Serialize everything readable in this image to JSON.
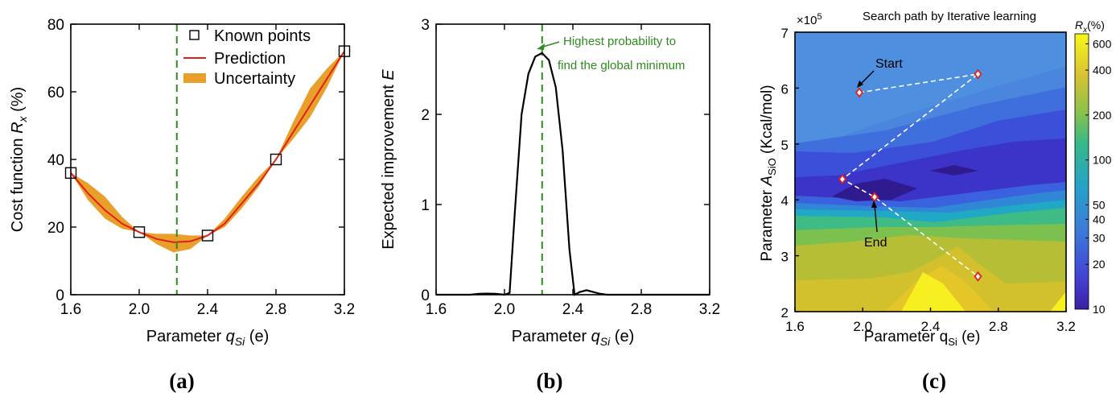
{
  "panels": [
    {
      "id": "a",
      "caption": "(a)"
    },
    {
      "id": "b",
      "caption": "(b)"
    },
    {
      "id": "c",
      "caption": "(c)"
    }
  ],
  "chart_data": [
    {
      "panel": "(a)",
      "type": "line",
      "title": "",
      "xlabel": "Parameter q_Si (e)",
      "ylabel": "Cost function R_x (%)",
      "xlim": [
        1.6,
        3.2
      ],
      "ylim": [
        0,
        80
      ],
      "xticks": [
        "1.6",
        "2.0",
        "2.4",
        "2.8",
        "3.2"
      ],
      "yticks": [
        "0",
        "20",
        "40",
        "60",
        "80"
      ],
      "legend": [
        "Known points",
        "Prediction",
        "Uncertainty"
      ],
      "legend_position": "top-right",
      "vline_x": 2.22,
      "known_points": {
        "x": [
          1.6,
          2.0,
          2.4,
          2.8,
          3.2
        ],
        "y": [
          36,
          18.5,
          17.5,
          40,
          72
        ]
      },
      "prediction": {
        "x": [
          1.6,
          1.7,
          1.8,
          1.9,
          2.0,
          2.1,
          2.2,
          2.3,
          2.4,
          2.5,
          2.6,
          2.7,
          2.8,
          2.9,
          3.0,
          3.1,
          3.2
        ],
        "y": [
          36,
          30,
          25,
          21,
          18.5,
          16.5,
          15.5,
          15.8,
          17.5,
          21,
          27,
          33,
          40,
          48,
          56,
          64,
          72
        ]
      },
      "uncertainty": {
        "x": [
          1.6,
          1.7,
          1.8,
          1.9,
          2.0,
          2.1,
          2.2,
          2.3,
          2.4,
          2.5,
          2.6,
          2.7,
          2.8,
          2.9,
          3.0,
          3.1,
          3.2
        ],
        "upper": [
          36,
          33,
          29,
          23,
          18.5,
          18,
          18,
          17.5,
          17.5,
          22.5,
          29,
          35,
          40,
          51,
          61,
          67,
          72
        ],
        "lower": [
          36,
          28,
          22.5,
          19.5,
          18.5,
          15,
          12.5,
          13.5,
          17.5,
          20,
          25.5,
          32,
          40,
          46,
          52.5,
          61.5,
          72
        ]
      },
      "colors": {
        "points": "#000000",
        "prediction": "#e0201b",
        "uncertainty": "#e8a02a",
        "vline": "#2e8b1e"
      }
    },
    {
      "panel": "(b)",
      "type": "line",
      "title": "",
      "xlabel": "Parameter q_Si (e)",
      "ylabel": "Expected improvement E",
      "xlim": [
        1.6,
        3.2
      ],
      "ylim": [
        0,
        3
      ],
      "xticks": [
        "1.6",
        "2.0",
        "2.4",
        "2.8",
        "3.2"
      ],
      "yticks": [
        "0",
        "1",
        "2",
        "3"
      ],
      "vline_x": 2.22,
      "annotation": [
        "Highest probability to",
        "find the global minimum"
      ],
      "series": [
        {
          "x": [
            1.6,
            1.8,
            1.85,
            1.9,
            1.95,
            2.0,
            2.03,
            2.06,
            2.1,
            2.14,
            2.18,
            2.22,
            2.26,
            2.3,
            2.34,
            2.38,
            2.41,
            2.44,
            2.48,
            2.52,
            2.56,
            2.6,
            2.8,
            3.0,
            3.2
          ],
          "y": [
            0,
            0,
            0.01,
            0.012,
            0.01,
            0,
            0.02,
            0.9,
            2.0,
            2.45,
            2.64,
            2.68,
            2.6,
            2.3,
            1.6,
            0.5,
            0,
            0.03,
            0.05,
            0.03,
            0.01,
            0,
            0,
            0,
            0
          ]
        }
      ],
      "colors": {
        "line": "#000000",
        "vline": "#2e8b1e",
        "annotation": "#2e8b1e"
      }
    },
    {
      "panel": "(c)",
      "type": "heatmap",
      "title": "Search path by Iterative learning",
      "xlabel": "Parameter q_Si (e)",
      "ylabel": "Parameter A_SiO (Kcal/mol)",
      "xlim": [
        1.6,
        3.2
      ],
      "ylim": [
        2,
        7
      ],
      "y_multiplier": "×10^5",
      "xticks": [
        "1.6",
        "2.0",
        "2.4",
        "2.8",
        "3.2"
      ],
      "yticks": [
        "2",
        "3",
        "4",
        "5",
        "6",
        "7"
      ],
      "colorbar_label": "R_x(%)",
      "colorbar_ticks": [
        600,
        400,
        200,
        100,
        50,
        40,
        30,
        20,
        10
      ],
      "colorbar_scale": "log",
      "search_path": {
        "x": [
          1.98,
          2.68,
          1.88,
          2.07,
          2.68
        ],
        "y": [
          5.92,
          6.25,
          4.37,
          4.05,
          2.63
        ]
      },
      "annotations": [
        {
          "text": "Start"
        },
        {
          "text": "End"
        }
      ],
      "colors": {
        "path": "#ffffff",
        "marker": "#e0201b"
      }
    }
  ]
}
